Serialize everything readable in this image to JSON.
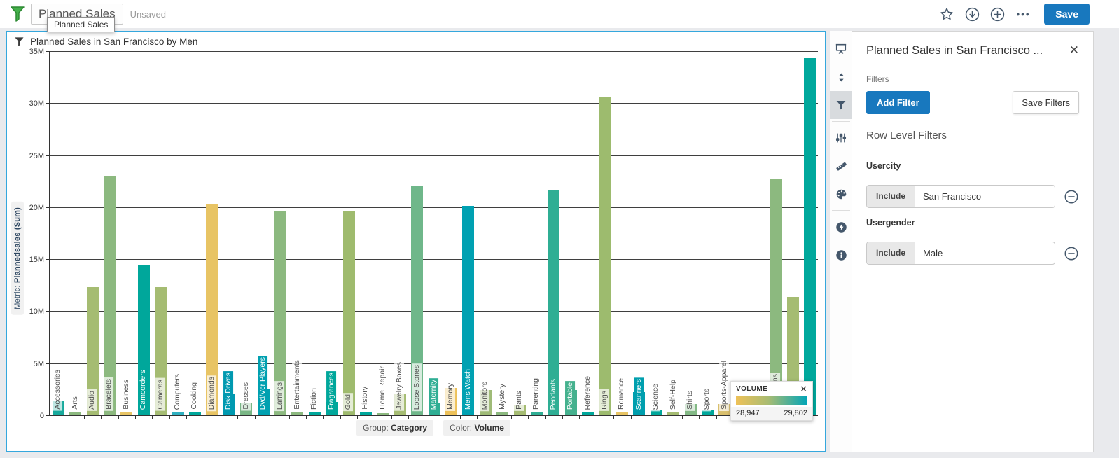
{
  "top_bar": {
    "title_value": "Planned Sales",
    "status": "Unsaved",
    "tooltip": "Planned Sales",
    "save_label": "Save",
    "action_icons": [
      "star-icon",
      "download-icon",
      "plus-circle-icon",
      "ellipsis-icon"
    ]
  },
  "chart": {
    "header_title": "Planned Sales in San Francisco by Men",
    "footer": {
      "group_label": "Group:",
      "group_value": "Category",
      "color_label": "Color:",
      "color_value": "Volume"
    },
    "legend": {
      "title": "VOLUME",
      "min": "28,947",
      "max": "29,802"
    }
  },
  "toolbar": {
    "icons": [
      {
        "name": "presentation-icon",
        "selected": false,
        "group_end": false
      },
      {
        "name": "sort-icon",
        "selected": false,
        "group_end": false
      },
      {
        "name": "filter-icon",
        "selected": true,
        "group_end": true
      },
      {
        "name": "sliders-icon",
        "selected": false,
        "group_end": false
      },
      {
        "name": "ruler-icon",
        "selected": false,
        "group_end": false
      },
      {
        "name": "palette-icon",
        "selected": false,
        "group_end": true
      },
      {
        "name": "energy-icon",
        "selected": false,
        "group_end": false
      },
      {
        "name": "info-icon",
        "selected": false,
        "group_end": false
      }
    ]
  },
  "panel": {
    "title": "Planned Sales in San Francisco ...",
    "filters_label": "Filters",
    "add_filter_label": "Add Filter",
    "save_filters_label": "Save Filters",
    "section_title": "Row Level Filters",
    "row_level_filters": [
      {
        "field": "Usercity",
        "operator": "Include",
        "value": "San Francisco"
      },
      {
        "field": "Usergender",
        "operator": "Include",
        "value": "Male"
      }
    ]
  },
  "chart_data": {
    "type": "bar",
    "title": "Planned Sales in San Francisco by Men",
    "ylabel_prefix": "Metric: ",
    "ylabel_bold": "Plannedsales (Sum)",
    "ylim_millions": [
      0,
      35
    ],
    "ytick_step_millions": 5,
    "ytick_labels": [
      "0",
      "5M",
      "10M",
      "15M",
      "20M",
      "25M",
      "30M",
      "35M"
    ],
    "grid": true,
    "group": "Category",
    "color": "Volume",
    "color_scale": {
      "label": "VOLUME",
      "min": 28947,
      "max": 29802,
      "gradient": [
        "#eec158",
        "#a9bc72",
        "#00a5b8"
      ]
    },
    "categories": [
      {
        "label": "Accessories",
        "value_millions": 1.35,
        "color": "#17a99c",
        "inverse": false
      },
      {
        "label": "Arts",
        "value_millions": 0.3,
        "color": "#8cb97f",
        "inverse": false
      },
      {
        "label": "Audio",
        "value_millions": 12.3,
        "color": "#a5bc72",
        "inverse": false
      },
      {
        "label": "Bracelets",
        "value_millions": 23.0,
        "color": "#8cb97f",
        "inverse": false
      },
      {
        "label": "Business",
        "value_millions": 0.25,
        "color": "#e8c464",
        "inverse": false
      },
      {
        "label": "Camcorders",
        "value_millions": 14.4,
        "color": "#00a79b",
        "inverse": true
      },
      {
        "label": "Cameras",
        "value_millions": 12.3,
        "color": "#a5bc72",
        "inverse": false
      },
      {
        "label": "Computers",
        "value_millions": 0.3,
        "color": "#2fb0c0",
        "inverse": false
      },
      {
        "label": "Cooking",
        "value_millions": 0.3,
        "color": "#00a79b",
        "inverse": false
      },
      {
        "label": "Diamonds",
        "value_millions": 20.3,
        "color": "#e8c464",
        "inverse": false
      },
      {
        "label": "Disk Drives",
        "value_millions": 2.1,
        "color": "#0099b0",
        "inverse": true
      },
      {
        "label": "Dresses",
        "value_millions": 1.15,
        "color": "#79b685",
        "inverse": false
      },
      {
        "label": "Dvd/Vcr Players",
        "value_millions": 2.5,
        "color": "#00a0b0",
        "inverse": true
      },
      {
        "label": "Earrings",
        "value_millions": 19.6,
        "color": "#8cb97f",
        "inverse": false
      },
      {
        "label": "Entertainments",
        "value_millions": 0.3,
        "color": "#8cb97f",
        "inverse": false
      },
      {
        "label": "Fiction",
        "value_millions": 0.35,
        "color": "#00a79b",
        "inverse": false
      },
      {
        "label": "Fragrances",
        "value_millions": 1.25,
        "color": "#00a79b",
        "inverse": true
      },
      {
        "label": "Gold",
        "value_millions": 19.6,
        "color": "#9fbb6e",
        "inverse": false
      },
      {
        "label": "History",
        "value_millions": 0.35,
        "color": "#00a79b",
        "inverse": false
      },
      {
        "label": "Home Repair",
        "value_millions": 0.2,
        "color": "#8cb97f",
        "inverse": false
      },
      {
        "label": "Jewelry Boxes",
        "value_millions": 2.1,
        "color": "#a5bc72",
        "inverse": false
      },
      {
        "label": "Loose Stones",
        "value_millions": 22.0,
        "color": "#6fb78a",
        "inverse": false
      },
      {
        "label": "Maternity",
        "value_millions": 1.15,
        "color": "#2fae94",
        "inverse": true
      },
      {
        "label": "Memory",
        "value_millions": 2.6,
        "color": "#edc159",
        "inverse": false
      },
      {
        "label": "Mens Watch",
        "value_millions": 20.1,
        "color": "#00a1b2",
        "inverse": true
      },
      {
        "label": "Monitors",
        "value_millions": 2.45,
        "color": "#9fbb77",
        "inverse": false
      },
      {
        "label": "Mystery",
        "value_millions": 0.3,
        "color": "#8cb97f",
        "inverse": false
      },
      {
        "label": "Pants",
        "value_millions": 1.0,
        "color": "#a5bc72",
        "inverse": false
      },
      {
        "label": "Parenting",
        "value_millions": 0.3,
        "color": "#2fae94",
        "inverse": false
      },
      {
        "label": "Pendants",
        "value_millions": 21.6,
        "color": "#2fae94",
        "inverse": true
      },
      {
        "label": "Portable",
        "value_millions": 2.4,
        "color": "#45b18e",
        "inverse": true
      },
      {
        "label": "Reference",
        "value_millions": 0.3,
        "color": "#00a79b",
        "inverse": false
      },
      {
        "label": "Rings",
        "value_millions": 30.6,
        "color": "#9dbb6e",
        "inverse": false
      },
      {
        "label": "Romance",
        "value_millions": 0.35,
        "color": "#e8c464",
        "inverse": false
      },
      {
        "label": "Scanners",
        "value_millions": 2.2,
        "color": "#009fae",
        "inverse": true
      },
      {
        "label": "Science",
        "value_millions": 0.5,
        "color": "#00a79b",
        "inverse": false
      },
      {
        "label": "Self-Help",
        "value_millions": 0.25,
        "color": "#a5bc72",
        "inverse": false
      },
      {
        "label": "Shirts",
        "value_millions": 1.1,
        "color": "#83b985",
        "inverse": false
      },
      {
        "label": "Sports",
        "value_millions": 0.5,
        "color": "#00a79b",
        "inverse": false
      },
      {
        "label": "Sports-Apparel",
        "value_millions": 1.1,
        "color": "#d9bf6d",
        "inverse": false
      },
      {
        "label": "Stereo",
        "value_millions": 2.4,
        "color": "#00a79b",
        "inverse": true
      },
      {
        "label": "Sweater",
        "value_millions": 1.5,
        "color": "#8cb97f",
        "inverse": false
      },
      {
        "label": "Televisions",
        "value_millions": 22.7,
        "color": "#8cb97f",
        "inverse": false
      },
      {
        "label": "Tools",
        "value_millions": 11.4,
        "color": "#a5bc72",
        "inverse": false
      },
      {
        "label": "Watch",
        "value_millions": 34.3,
        "color": "#00a89c",
        "inverse": true
      }
    ]
  }
}
